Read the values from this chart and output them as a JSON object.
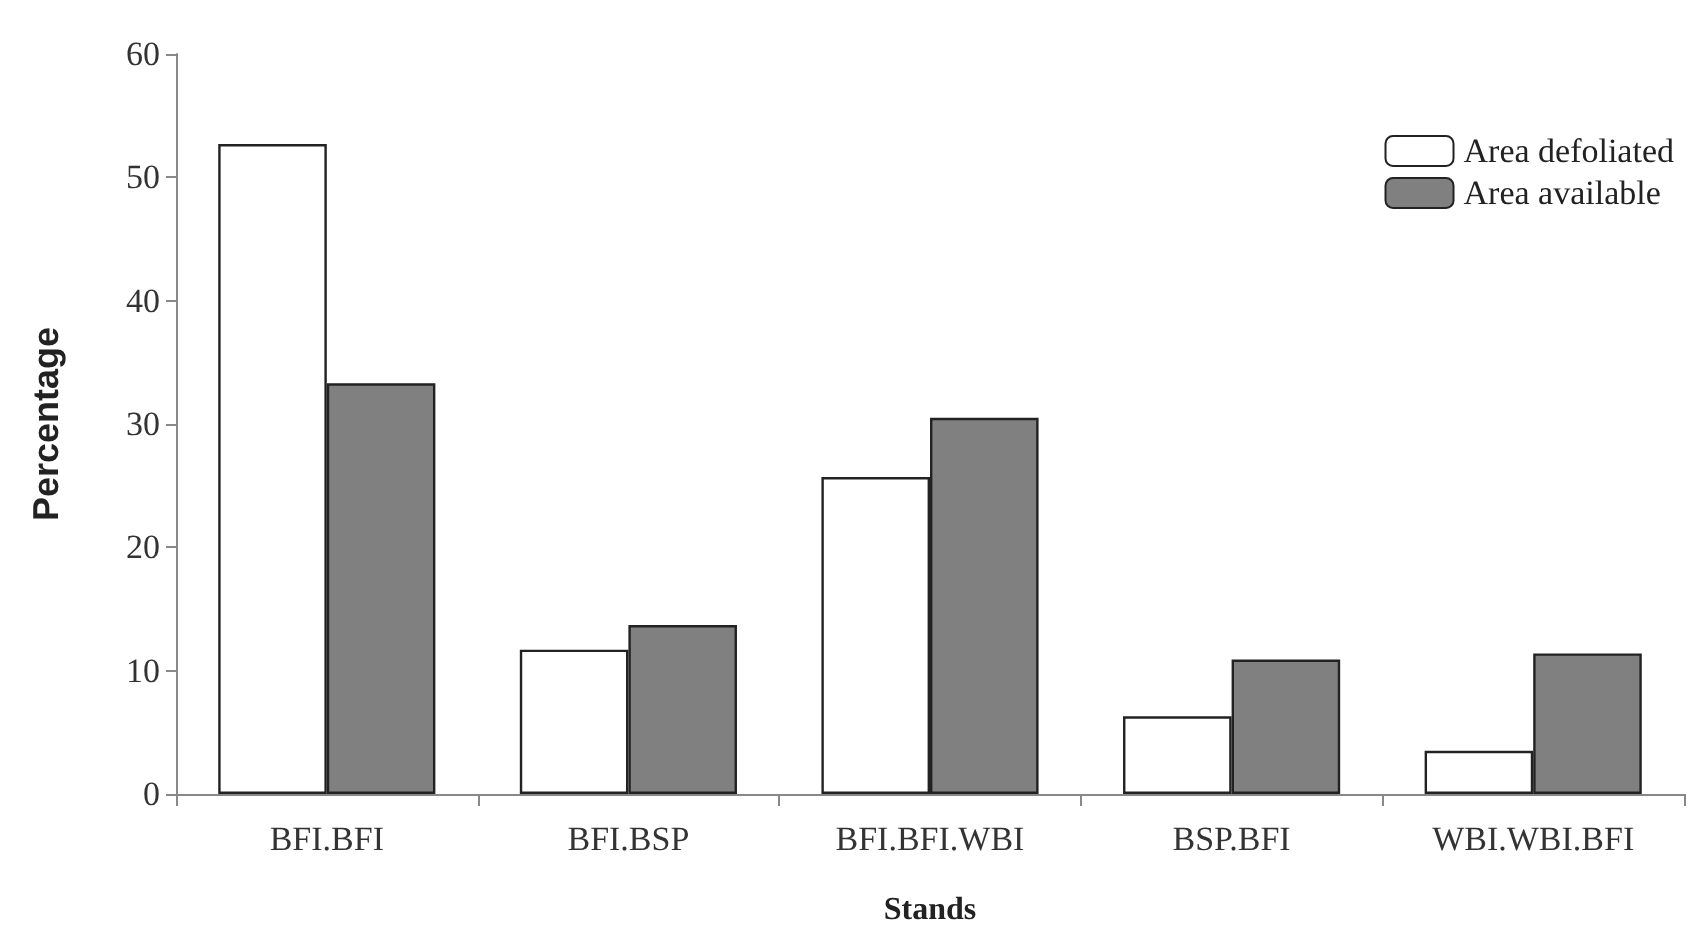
{
  "chart_data": {
    "type": "bar",
    "xlabel": "Stands",
    "ylabel": "Percentage",
    "categories": [
      "BFI.BFI",
      "BFI.BSP",
      "BFI.BFI.WBI",
      "BSP.BFI",
      "WBI.WBI.BFI"
    ],
    "series": [
      {
        "name": "Area defoliated",
        "color": "#ffffff",
        "values": [
          52.7,
          11.7,
          25.7,
          6.3,
          3.5
        ]
      },
      {
        "name": "Area available",
        "color": "#808080",
        "values": [
          33.3,
          13.7,
          30.5,
          10.9,
          11.4
        ]
      }
    ],
    "ylim": [
      0,
      60
    ],
    "yticks": [
      0,
      10,
      20,
      30,
      40,
      50,
      60
    ],
    "grid": false,
    "legend": "top right"
  }
}
